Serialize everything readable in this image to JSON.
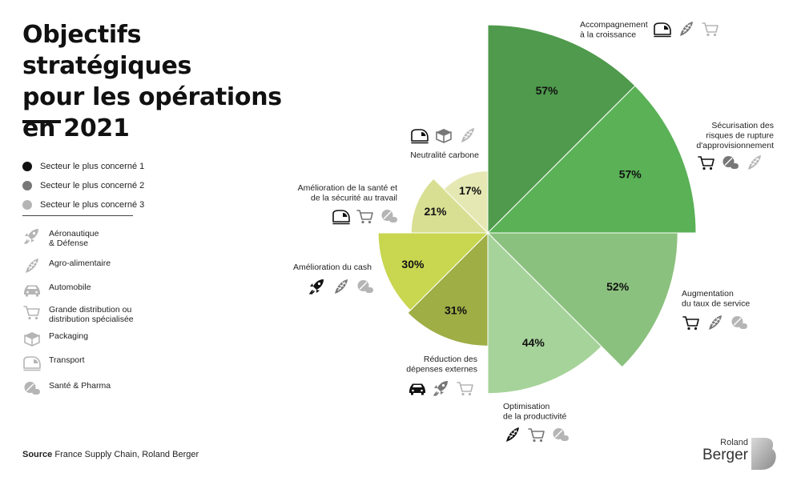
{
  "title_lines": [
    "Objectifs stratégiques",
    "pour les opérations",
    "en 2021"
  ],
  "legend_rank": [
    {
      "label": "Secteur le plus concerné 1",
      "color": "#111111"
    },
    {
      "label": "Secteur le plus concerné 2",
      "color": "#777777"
    },
    {
      "label": "Secteur le plus concerné 3",
      "color": "#b5b5b5"
    }
  ],
  "legend_sectors": [
    {
      "icon": "rocket-icon",
      "label_lines": [
        "Aéronautique",
        "& Défense"
      ]
    },
    {
      "icon": "corn-icon",
      "label_lines": [
        "Agro-alimentaire"
      ]
    },
    {
      "icon": "car-icon",
      "label_lines": [
        "Automobile"
      ]
    },
    {
      "icon": "cart-icon",
      "label_lines": [
        "Grande distribution ou",
        "distribution spécialisée"
      ]
    },
    {
      "icon": "box-icon",
      "label_lines": [
        "Packaging"
      ]
    },
    {
      "icon": "train-icon",
      "label_lines": [
        "Transport"
      ]
    },
    {
      "icon": "pill-icon",
      "label_lines": [
        "Santé & Pharma"
      ]
    }
  ],
  "source": {
    "prefix": "Source",
    "text": "France Supply Chain, Roland Berger"
  },
  "logo": {
    "line1": "Roland",
    "line2": "Berger"
  },
  "chart_data": {
    "type": "polar-area",
    "value_unit": "%",
    "categories": [
      {
        "label_lines": [
          "Accompagnement",
          "à la croissance"
        ],
        "value": 57,
        "label": "57%",
        "color": "#4f9a4c",
        "icons": [
          "train-icon",
          "corn-icon",
          "cart-icon"
        ]
      },
      {
        "label_lines": [
          "Sécurisation des",
          "risques de rupture",
          "d'approvisionnement"
        ],
        "value": 57,
        "label": "57%",
        "color": "#5ab156",
        "icons": [
          "cart-icon",
          "pill-icon",
          "corn-icon"
        ]
      },
      {
        "label_lines": [
          "Augmentation",
          "du taux de service"
        ],
        "value": 52,
        "label": "52%",
        "color": "#8bc17e",
        "icons": [
          "cart-icon",
          "corn-icon",
          "pill-icon"
        ]
      },
      {
        "label_lines": [
          "Optimisation",
          "de la productivité"
        ],
        "value": 44,
        "label": "44%",
        "color": "#a6d39a",
        "icons": [
          "corn-icon",
          "cart-icon",
          "pill-icon"
        ]
      },
      {
        "label_lines": [
          "Réduction des",
          "dépenses externes"
        ],
        "value": 31,
        "label": "31%",
        "color": "#9fae45",
        "icons": [
          "car-icon",
          "rocket-icon",
          "cart-icon"
        ]
      },
      {
        "label_lines": [
          "Amélioration du cash"
        ],
        "value": 30,
        "label": "30%",
        "color": "#c8d650",
        "icons": [
          "rocket-icon",
          "corn-icon",
          "pill-icon"
        ]
      },
      {
        "label_lines": [
          "Amélioration de la santé et",
          "de la sécurité au travail"
        ],
        "value": 21,
        "label": "21%",
        "color": "#d8df92",
        "icons": [
          "train-icon",
          "cart-icon",
          "pill-icon"
        ]
      },
      {
        "label_lines": [
          "Neutralité carbone"
        ],
        "value": 17,
        "label": "17%",
        "color": "#e6e8b4",
        "icons": [
          "train-icon",
          "box-icon",
          "corn-icon"
        ]
      }
    ]
  }
}
